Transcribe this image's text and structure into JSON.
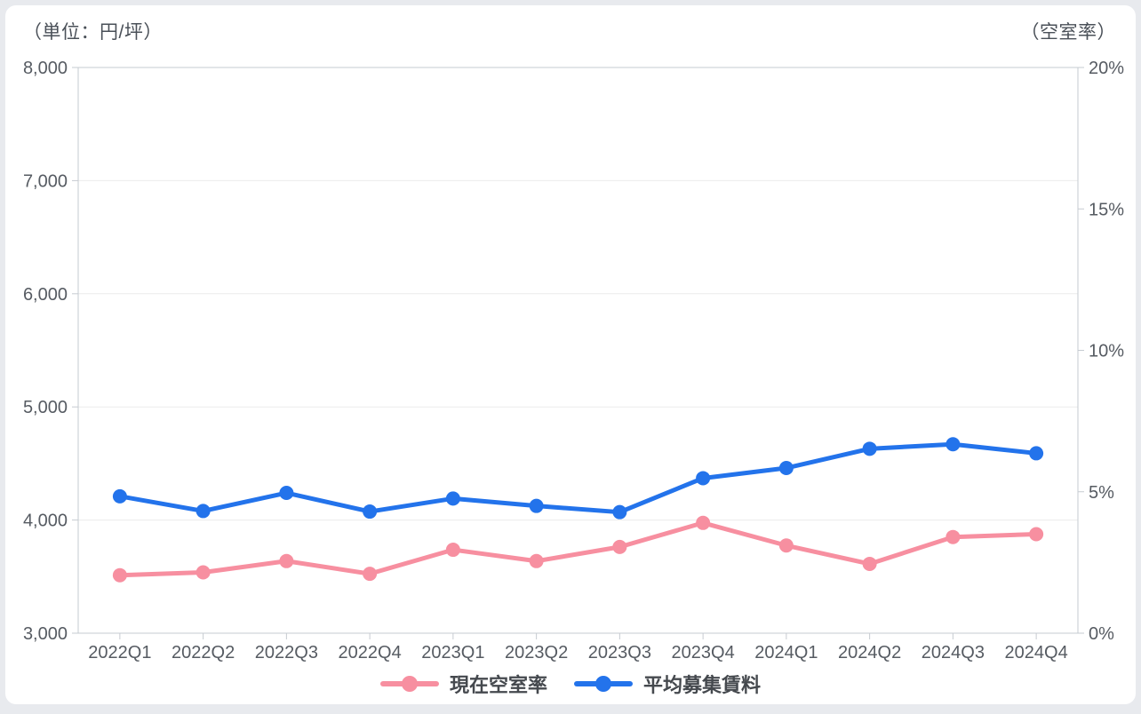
{
  "page": {
    "background_color": "#e8eaee",
    "card_color": "#ffffff"
  },
  "chart_data": {
    "type": "line",
    "title": "",
    "categories": [
      "2022Q1",
      "2022Q2",
      "2022Q3",
      "2022Q4",
      "2023Q1",
      "2023Q2",
      "2023Q3",
      "2023Q4",
      "2024Q1",
      "2024Q2",
      "2024Q3",
      "2024Q4"
    ],
    "series": [
      {
        "name": "現在空室率",
        "axis": "right",
        "unit": "%",
        "color": "#f78fa0",
        "values": [
          2.05,
          2.15,
          2.55,
          2.1,
          2.95,
          2.55,
          3.05,
          3.9,
          3.1,
          2.45,
          3.4,
          3.5
        ]
      },
      {
        "name": "平均募集賃料",
        "axis": "left",
        "unit": "円/坪",
        "color": "#2373eb",
        "values": [
          4210,
          4080,
          4240,
          4075,
          4190,
          4125,
          4070,
          4370,
          4460,
          4630,
          4670,
          4590
        ]
      }
    ],
    "left_axis": {
      "label": "（単位：円/坪）",
      "min": 3000,
      "max": 8000,
      "ticks": [
        {
          "value": 8000,
          "label": "8,000"
        },
        {
          "value": 7000,
          "label": "7,000"
        },
        {
          "value": 6000,
          "label": "6,000"
        },
        {
          "value": 5000,
          "label": "5,000"
        },
        {
          "value": 4000,
          "label": "4,000"
        },
        {
          "value": 3000,
          "label": "3,000"
        }
      ]
    },
    "right_axis": {
      "label": "（空室率）",
      "min": 0,
      "max": 20,
      "ticks": [
        {
          "value": 20,
          "label": "20%"
        },
        {
          "value": 15,
          "label": "15%"
        },
        {
          "value": 10,
          "label": "10%"
        },
        {
          "value": 5,
          "label": "5%"
        },
        {
          "value": 0,
          "label": "0%"
        }
      ]
    },
    "grid": "horizontal-left-axis-only",
    "legend_position": "bottom",
    "colors": {
      "grid_line": "#ececec",
      "axis_border": "#c6cbd1",
      "tick_text": "#565b62"
    }
  },
  "legend": {
    "items": [
      {
        "label": "現在空室率",
        "color": "#f78fa0"
      },
      {
        "label": "平均募集賃料",
        "color": "#2373eb"
      }
    ]
  }
}
